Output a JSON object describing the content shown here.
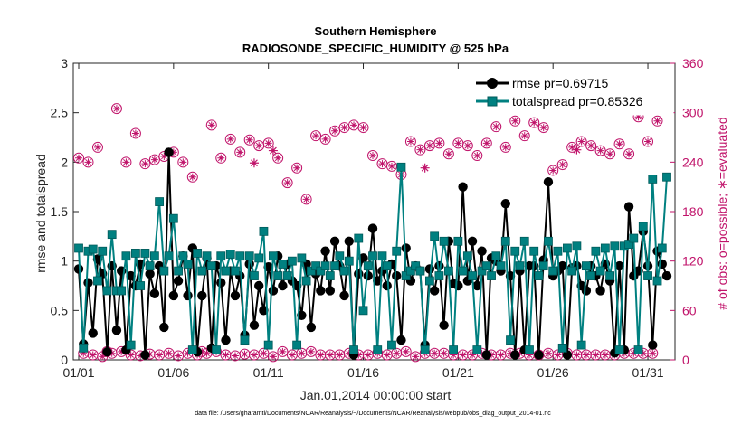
{
  "chart_data": {
    "type": "line",
    "title": [
      "Southern Hemisphere",
      "RADIOSONDE_SPECIFIC_HUMIDITY @ 525 hPa"
    ],
    "xlabel": "Jan.01,2014 00:00:00 start",
    "ylabel": "rmse and totalspread",
    "y2label": "# of obs: o=possible; ∗=evaluated",
    "footnote": "data file: /Users/gharamti/Documents/NCAR/Reanalysis/~/Documents/NCAR/Reanalysis/webpub/obs_diag_output_2014-01.nc",
    "xlim": [
      0,
      31
    ],
    "ylim": [
      0,
      3
    ],
    "y2lim": [
      0,
      360
    ],
    "xticks": [
      0,
      5,
      10,
      15,
      20,
      25,
      30
    ],
    "xtick_labels": [
      "01/01",
      "01/06",
      "01/11",
      "01/16",
      "01/21",
      "01/26",
      "01/31"
    ],
    "yticks": [
      0,
      0.5,
      1,
      1.5,
      2,
      2.5,
      3
    ],
    "ytick_labels": [
      "0",
      "0.5",
      "1",
      "1.5",
      "2",
      "2.5",
      "3"
    ],
    "y2ticks": [
      0,
      60,
      120,
      180,
      240,
      300,
      360
    ],
    "y2tick_labels": [
      "0",
      "60",
      "120",
      "180",
      "240",
      "300",
      "360"
    ],
    "legend_position": "top-right",
    "grid": false,
    "series": [
      {
        "name": "rmse pr=0.69715",
        "color": "#000000",
        "marker": "circle",
        "values": [
          0.92,
          0.16,
          0.78,
          0.27,
          1.02,
          0.87,
          0.08,
          0.95,
          0.3,
          0.9,
          0.1,
          0.85,
          0.75,
          0.97,
          0.05,
          0.87,
          0.67,
          0.95,
          0.33,
          2.1,
          0.65,
          0.8,
          1.05,
          0.65,
          1.13,
          0.08,
          0.65,
          1.03,
          0.12,
          0.95,
          0.78,
          0.2,
          0.9,
          0.65,
          0.85,
          0.25,
          0.97,
          0.35,
          0.75,
          0.5,
          0.94,
          0.7,
          1.05,
          0.75,
          0.97,
          0.8,
          0.75,
          0.45,
          0.97,
          0.33,
          0.87,
          0.7,
          1.1,
          0.7,
          1.2,
          0.95,
          0.65,
          1.2,
          0.05,
          0.87,
          1.03,
          0.85,
          1.33,
          0.8,
          0.9,
          0.75,
          0.97,
          0.85,
          0.2,
          1.13,
          0.8,
          0.95,
          0.9,
          0.15,
          0.92,
          0.7,
          0.95,
          0.35,
          1.2,
          0.77,
          0.75,
          1.75,
          0.8,
          1.2,
          0.75,
          1.1,
          0.05,
          1.03,
          1.0,
          0.9,
          1.58,
          0.85,
          0.05,
          0.9,
          0.1,
          0.95,
          0.95,
          0.05,
          1.01,
          1.8,
          0.85,
          0.9,
          0.95,
          0.05,
          0.93,
          0.95,
          0.75,
          0.7,
          0.95,
          0.85,
          0.7,
          0.97,
          0.8,
          0.07,
          0.95,
          0.1,
          1.55,
          0.85,
          0.9,
          1.3,
          0.95,
          0.15,
          1.1,
          0.97,
          0.85
        ],
        "x_step_days": 0.25
      },
      {
        "name": "totalspread pr=0.85326",
        "color": "#008080",
        "marker": "square",
        "values": [
          1.13,
          0.12,
          1.1,
          1.12,
          0.8,
          1.1,
          0.7,
          1.27,
          0.7,
          0.7,
          1.05,
          0.15,
          1.08,
          0.75,
          1.08,
          0.95,
          1.05,
          1.6,
          0.9,
          1.05,
          1.43,
          0.9,
          1.05,
          0.97,
          0.1,
          1.08,
          0.9,
          1.05,
          0.95,
          0.1,
          1.05,
          0.9,
          1.07,
          0.9,
          1.05,
          0.2,
          1.05,
          0.85,
          1.03,
          1.3,
          0.15,
          1.05,
          0.85,
          0.97,
          0.85,
          1.0,
          0.15,
          1.03,
          0.8,
          0.9,
          0.95,
          0.9,
          0.95,
          0.85,
          0.95,
          1.05,
          0.9,
          1.0,
          0.1,
          1.23,
          0.5,
          0.95,
          1.05,
          0.1,
          1.05,
          0.95,
          0.15,
          1.1,
          1.95,
          0.85,
          0.9,
          0.95,
          0.9,
          0.1,
          0.8,
          1.25,
          0.85,
          1.2,
          0.9,
          0.1,
          1.2,
          0.9,
          1.05,
          0.85,
          0.1,
          0.9,
          0.95,
          0.85,
          1.05,
          0.95,
          1.2,
          0.2,
          1.1,
          0.95,
          1.2,
          0.1,
          1.1,
          0.85,
          0.95,
          1.2,
          0.9,
          1.1,
          0.12,
          1.13,
          0.9,
          1.15,
          0.15,
          0.95,
          0.85,
          1.1,
          0.9,
          1.13,
          0.85,
          1.15,
          0.1,
          1.15,
          1.17,
          1.23,
          0.1,
          1.35,
          0.85,
          1.83,
          0.8,
          1.13,
          1.85
        ],
        "x_step_days": 0.25
      }
    ],
    "obs_series": [
      {
        "name": "possible",
        "axis": "right",
        "color": "#C0136A",
        "marker": "open-circle",
        "values": [
          245,
          8,
          240,
          6,
          258,
          4,
          10,
          8,
          305,
          10,
          240,
          6,
          275,
          5,
          238,
          7,
          243,
          6,
          247,
          8,
          252,
          5,
          240,
          8,
          222,
          6,
          10,
          8,
          285,
          10,
          245,
          6,
          268,
          5,
          252,
          7,
          267,
          6,
          260,
          8,
          263,
          4,
          245,
          10,
          215,
          6,
          233,
          8,
          195,
          10,
          272,
          6,
          268,
          6,
          278,
          6,
          282,
          8,
          285,
          6,
          282,
          6,
          248,
          8,
          238,
          6,
          235,
          8,
          225,
          10,
          265,
          4,
          255,
          8,
          260,
          8,
          263,
          8,
          250,
          6,
          263,
          6,
          260,
          6,
          248,
          8,
          263,
          6,
          283,
          6,
          258,
          8,
          290,
          8,
          272,
          6,
          288,
          6,
          282,
          8,
          230,
          6,
          237,
          8,
          258,
          6,
          265,
          6,
          260,
          6,
          254,
          6,
          250,
          6,
          262,
          8,
          250,
          8,
          295,
          8,
          265,
          8,
          290
        ]
      },
      {
        "name": "evaluated",
        "axis": "right",
        "color": "#C0136A",
        "marker": "asterisk",
        "points": [
          [
            9.25,
            239
          ],
          [
            10.25,
            254
          ],
          [
            18.25,
            233
          ],
          [
            26.25,
            255
          ]
        ]
      }
    ]
  }
}
